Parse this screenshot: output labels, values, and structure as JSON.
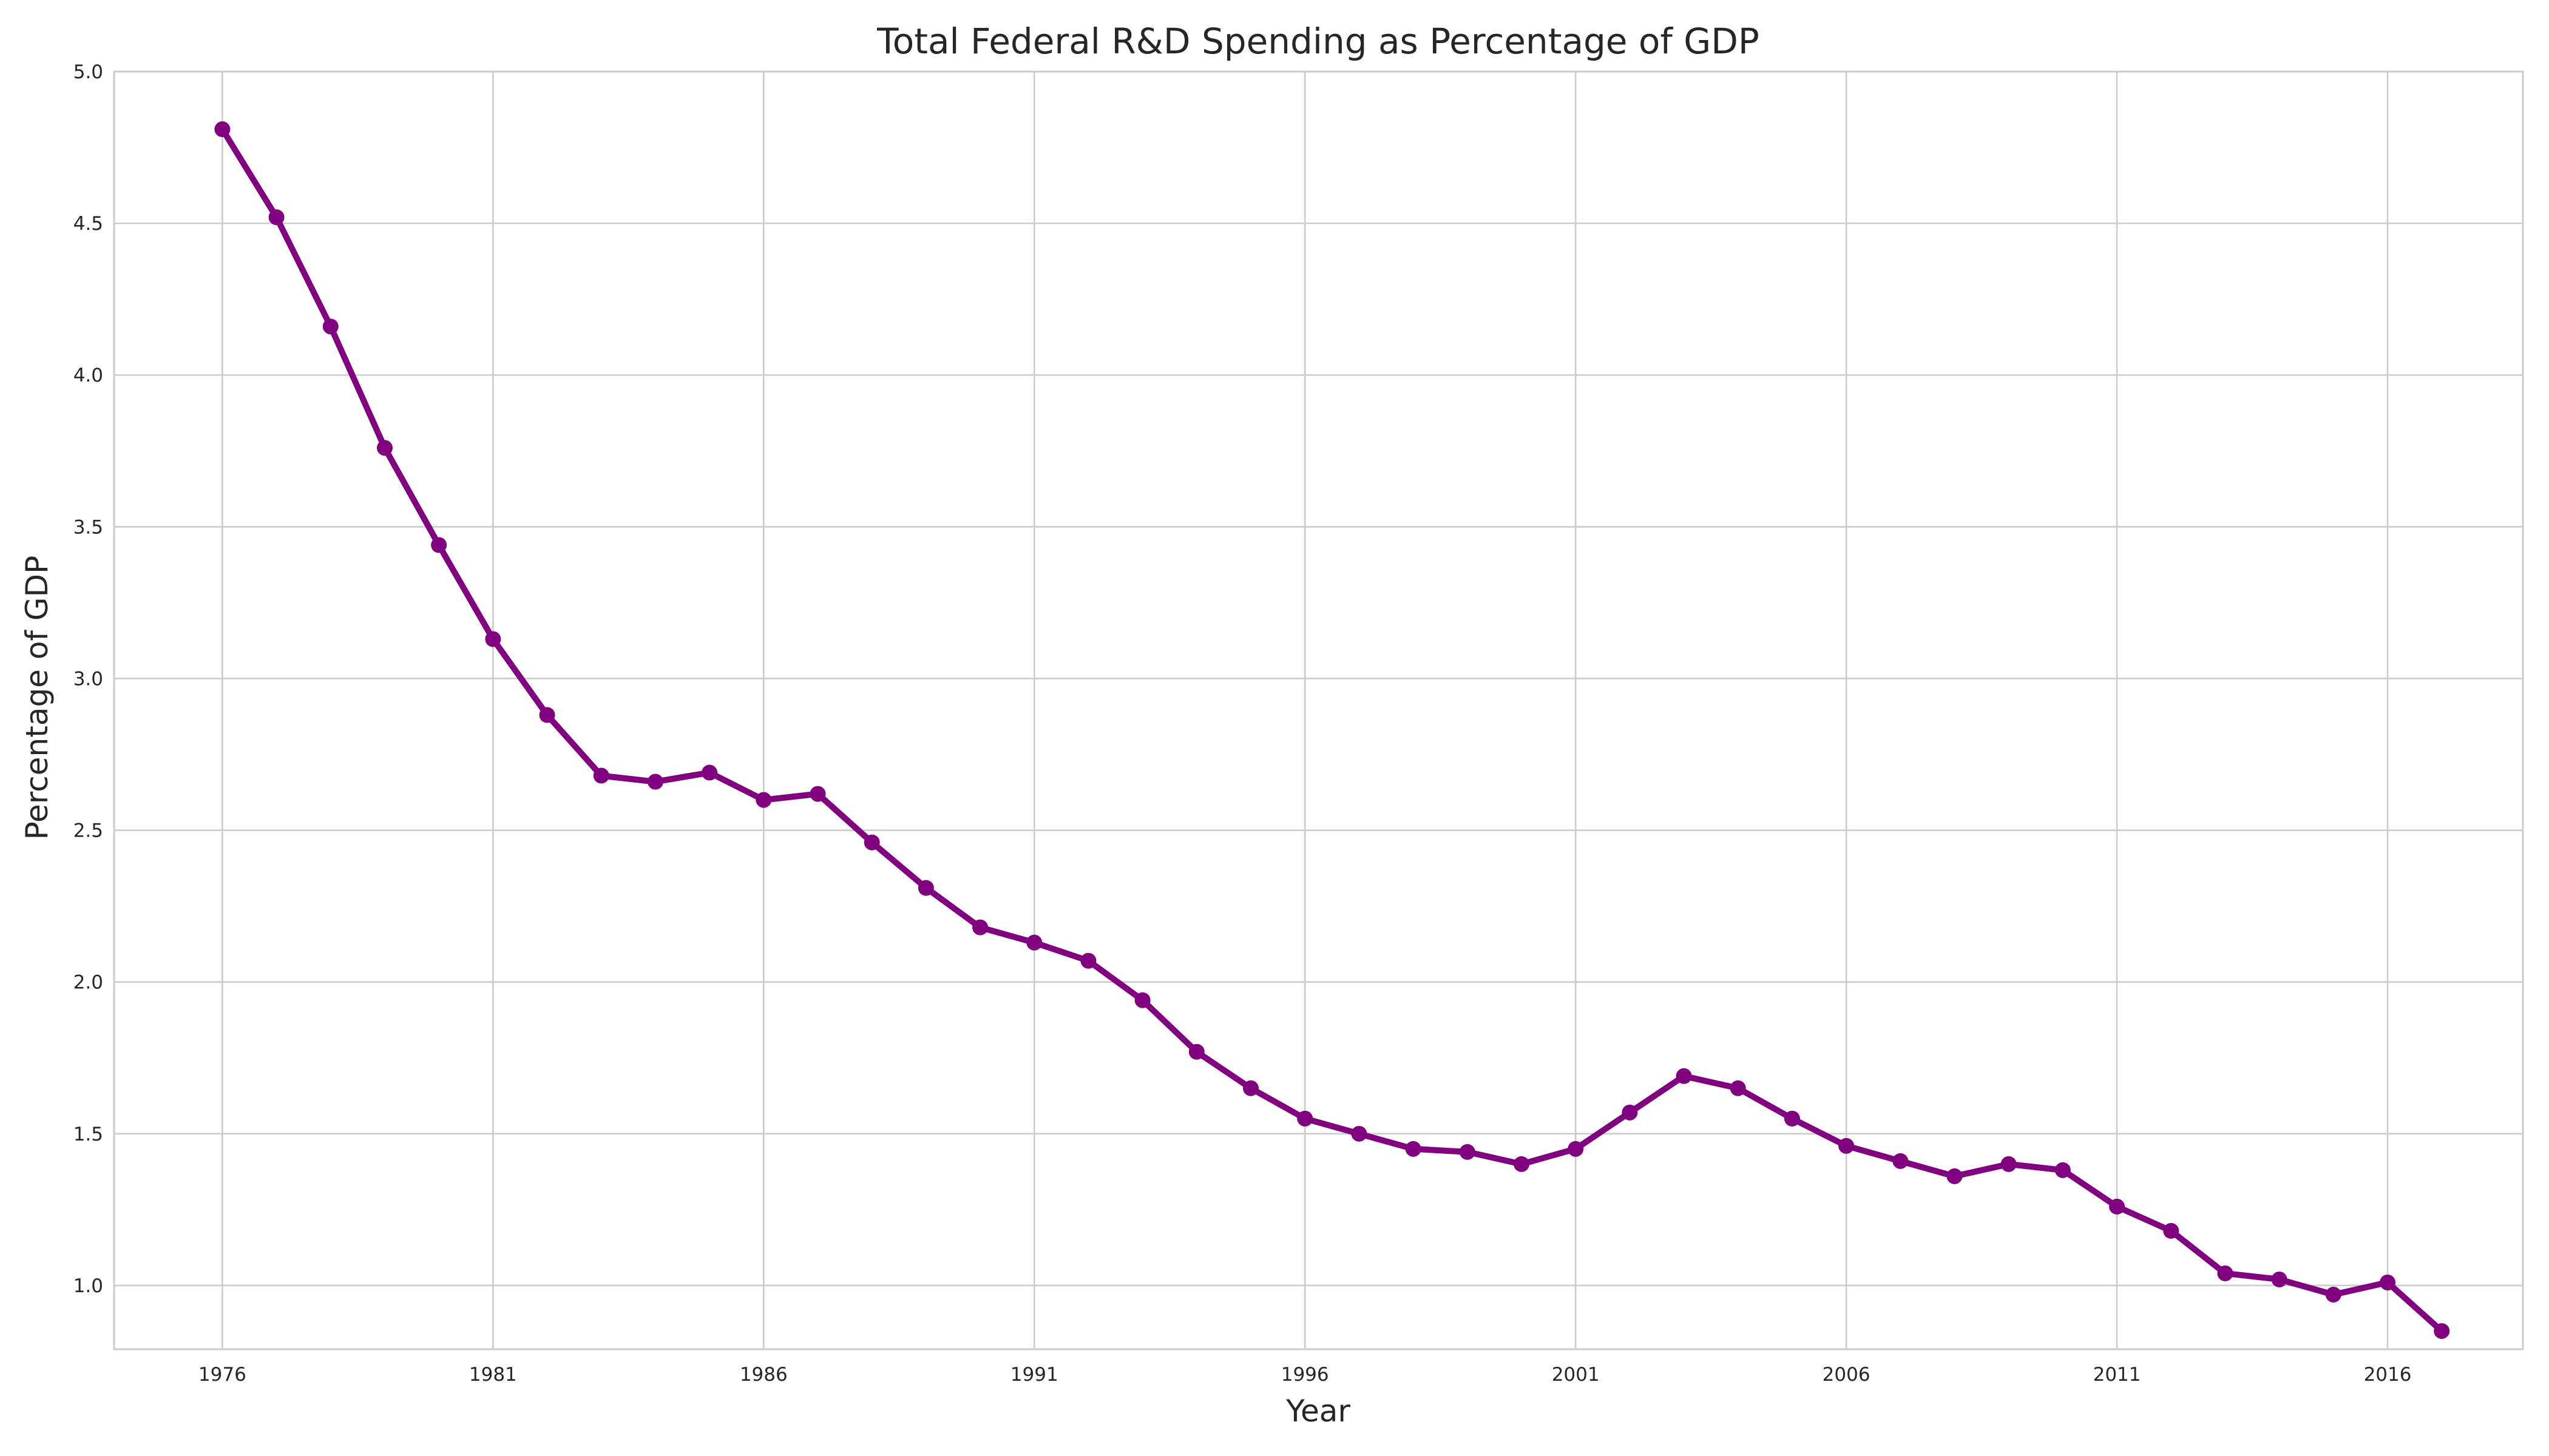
{
  "chart_data": {
    "type": "line",
    "title": "Total Federal R&D Spending as Percentage of GDP",
    "xlabel": "Year",
    "ylabel": "Percentage of GDP",
    "x": [
      1976,
      1977,
      1978,
      1979,
      1980,
      1981,
      1982,
      1983,
      1984,
      1985,
      1986,
      1987,
      1988,
      1989,
      1990,
      1991,
      1992,
      1993,
      1994,
      1995,
      1996,
      1997,
      1998,
      1999,
      2000,
      2001,
      2002,
      2003,
      2004,
      2005,
      2006,
      2007,
      2008,
      2009,
      2010,
      2011,
      2012,
      2013,
      2014,
      2015,
      2016,
      2017
    ],
    "series": [
      {
        "values": [
          4.81,
          4.52,
          4.16,
          3.76,
          3.44,
          3.13,
          2.88,
          2.68,
          2.66,
          2.69,
          2.6,
          2.62,
          2.46,
          2.31,
          2.18,
          2.13,
          2.07,
          1.94,
          1.77,
          1.65,
          1.55,
          1.5,
          1.45,
          1.44,
          1.4,
          1.45,
          1.57,
          1.69,
          1.65,
          1.55,
          1.46,
          1.41,
          1.36,
          1.4,
          1.38,
          1.26,
          1.18,
          1.04,
          1.02,
          0.97,
          1.01,
          0.85
        ],
        "color": "#800080"
      }
    ],
    "xlim": [
      1974,
      2018.5
    ],
    "ylim": [
      0.79,
      5.0
    ],
    "xticks": [
      "1976",
      "1981",
      "1986",
      "1991",
      "1996",
      "2001",
      "2006",
      "2011",
      "2016"
    ],
    "yticks": [
      "1.0",
      "1.5",
      "2.0",
      "2.5",
      "3.0",
      "3.5",
      "4.0",
      "4.5",
      "5.0"
    ],
    "grid": true,
    "markers": true
  }
}
